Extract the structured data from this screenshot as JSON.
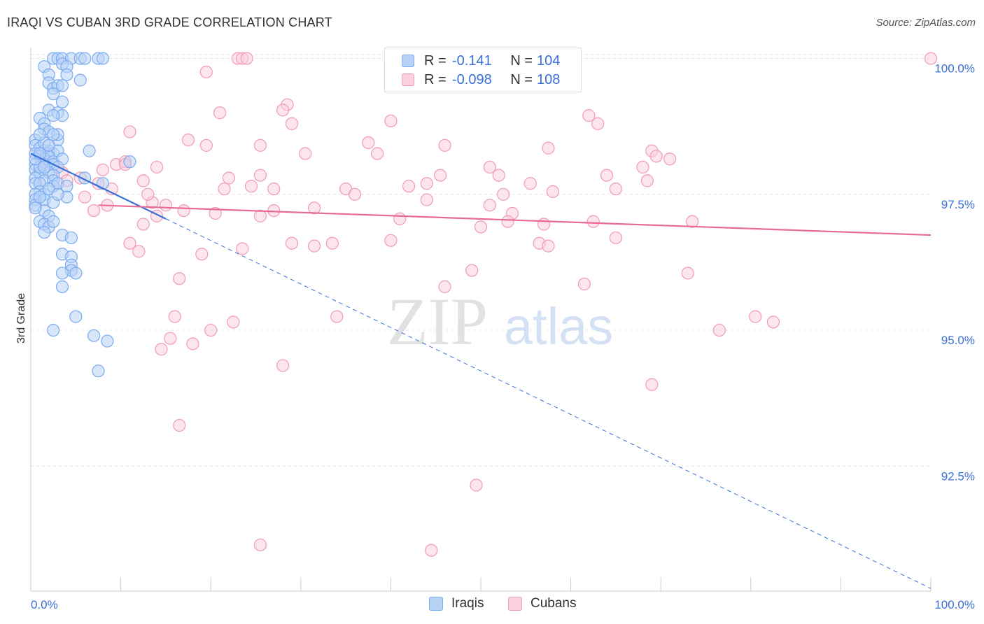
{
  "title": "IRAQI VS CUBAN 3RD GRADE CORRELATION CHART",
  "source": "Source: ZipAtlas.com",
  "watermark": {
    "zip": "ZIP",
    "atlas": "atlas"
  },
  "legend_top": {
    "rows": [
      {
        "r_label": "R =",
        "r_value": "-0.141",
        "n_label": "N =",
        "n_value": "104",
        "color": "#7aaaf0",
        "fill": "#b8d2f6"
      },
      {
        "r_label": "R =",
        "r_value": "-0.098",
        "n_label": "N =",
        "n_value": "108",
        "color": "#f09ab5",
        "fill": "#fbd0dd"
      }
    ]
  },
  "legend_bottom": [
    {
      "label": "Iraqis",
      "color": "#7aaaf0",
      "fill": "#b8d2f6"
    },
    {
      "label": "Cubans",
      "color": "#f09ab5",
      "fill": "#fbd0dd"
    }
  ],
  "chart_data": {
    "type": "scatter",
    "title": "IRAQI VS CUBAN 3RD GRADE CORRELATION CHART",
    "xlabel": "",
    "ylabel": "3rd Grade",
    "xlim": [
      0,
      100
    ],
    "ylim": [
      90.2,
      100.2
    ],
    "x_tick_labels": [
      "0.0%",
      "100.0%"
    ],
    "y_ticks": [
      92.5,
      95.0,
      97.5,
      100.0
    ],
    "y_tick_labels": [
      "92.5%",
      "95.0%",
      "97.5%",
      "100.0%"
    ],
    "colors": {
      "iraqis": "#3a6fd8",
      "cubans": "#e86a96"
    },
    "series": [
      {
        "name": "Iraqis",
        "trend": {
          "x0": 0,
          "y0": 98.25,
          "x1": 15,
          "y1": 97.05,
          "dash_to_x": 100,
          "dash_to_y": 90.25
        },
        "points": [
          [
            2.5,
            100
          ],
          [
            3.0,
            100
          ],
          [
            3.5,
            100
          ],
          [
            4.5,
            100
          ],
          [
            5.5,
            100
          ],
          [
            6.0,
            100
          ],
          [
            7.5,
            100
          ],
          [
            8.0,
            100
          ],
          [
            3.5,
            99.9
          ],
          [
            1.5,
            99.85
          ],
          [
            4.0,
            99.85
          ],
          [
            2.0,
            99.7
          ],
          [
            4.0,
            99.7
          ],
          [
            2.0,
            99.55
          ],
          [
            5.5,
            99.6
          ],
          [
            2.5,
            99.45
          ],
          [
            3.0,
            99.5
          ],
          [
            3.5,
            99.5
          ],
          [
            2.5,
            99.35
          ],
          [
            3.5,
            99.2
          ],
          [
            2.0,
            99.05
          ],
          [
            3.0,
            99.0
          ],
          [
            3.5,
            98.95
          ],
          [
            2.5,
            98.95
          ],
          [
            1.0,
            98.9
          ],
          [
            1.5,
            98.8
          ],
          [
            1.5,
            98.7
          ],
          [
            2.0,
            98.65
          ],
          [
            3.0,
            98.5
          ],
          [
            0.5,
            98.5
          ],
          [
            0.5,
            98.4
          ],
          [
            1.0,
            98.35
          ],
          [
            1.5,
            98.3
          ],
          [
            2.0,
            98.3
          ],
          [
            2.5,
            98.25
          ],
          [
            3.0,
            98.3
          ],
          [
            6.5,
            98.3
          ],
          [
            0.5,
            98.25
          ],
          [
            1.0,
            98.2
          ],
          [
            1.5,
            98.15
          ],
          [
            2.0,
            98.2
          ],
          [
            2.5,
            98.1
          ],
          [
            3.5,
            98.15
          ],
          [
            0.5,
            98.05
          ],
          [
            1.5,
            98.05
          ],
          [
            2.5,
            98.05
          ],
          [
            3.0,
            98.0
          ],
          [
            11.0,
            98.1
          ],
          [
            0.5,
            97.95
          ],
          [
            1.0,
            97.9
          ],
          [
            2.0,
            97.9
          ],
          [
            2.5,
            97.85
          ],
          [
            0.5,
            97.8
          ],
          [
            1.5,
            97.75
          ],
          [
            2.5,
            97.75
          ],
          [
            6.0,
            97.8
          ],
          [
            0.5,
            97.7
          ],
          [
            1.0,
            97.7
          ],
          [
            2.5,
            97.65
          ],
          [
            3.0,
            97.7
          ],
          [
            4.0,
            97.65
          ],
          [
            8.0,
            97.7
          ],
          [
            1.0,
            97.55
          ],
          [
            0.5,
            97.5
          ],
          [
            1.5,
            97.5
          ],
          [
            0.5,
            97.4
          ],
          [
            1.5,
            97.4
          ],
          [
            2.5,
            97.35
          ],
          [
            0.5,
            97.3
          ],
          [
            1.5,
            97.2
          ],
          [
            2.0,
            97.1
          ],
          [
            1.0,
            97.0
          ],
          [
            1.5,
            96.95
          ],
          [
            2.0,
            96.9
          ],
          [
            1.5,
            96.8
          ],
          [
            3.5,
            96.75
          ],
          [
            4.5,
            96.7
          ],
          [
            3.5,
            96.4
          ],
          [
            4.5,
            96.35
          ],
          [
            4.5,
            96.2
          ],
          [
            4.5,
            96.1
          ],
          [
            3.5,
            96.05
          ],
          [
            5.0,
            96.05
          ],
          [
            3.5,
            95.8
          ],
          [
            5.0,
            95.25
          ],
          [
            2.5,
            95.0
          ],
          [
            7.0,
            94.9
          ],
          [
            8.5,
            94.8
          ],
          [
            7.5,
            94.25
          ],
          [
            1.0,
            98.0
          ],
          [
            2.0,
            97.6
          ],
          [
            1.5,
            98.45
          ],
          [
            3.0,
            98.6
          ],
          [
            0.5,
            97.25
          ],
          [
            1.0,
            98.6
          ],
          [
            2.5,
            97.0
          ],
          [
            4.0,
            97.45
          ],
          [
            1.5,
            98.0
          ],
          [
            3.0,
            97.5
          ],
          [
            2.0,
            98.4
          ],
          [
            0.5,
            98.15
          ],
          [
            1.0,
            97.45
          ],
          [
            2.5,
            98.6
          ],
          [
            1.0,
            98.25
          ]
        ]
      },
      {
        "name": "Cubans",
        "trend": {
          "x0": 7.5,
          "y0": 97.3,
          "x1": 100,
          "y1": 96.75
        },
        "points": [
          [
            23.0,
            100
          ],
          [
            23.5,
            100
          ],
          [
            24.0,
            100
          ],
          [
            100,
            100
          ],
          [
            19.5,
            99.75
          ],
          [
            28.5,
            99.15
          ],
          [
            28.0,
            99.05
          ],
          [
            21.0,
            99.0
          ],
          [
            29.0,
            98.8
          ],
          [
            40.0,
            98.85
          ],
          [
            62.0,
            98.95
          ],
          [
            63.0,
            98.8
          ],
          [
            11.0,
            98.65
          ],
          [
            17.5,
            98.5
          ],
          [
            19.5,
            98.4
          ],
          [
            25.5,
            98.4
          ],
          [
            37.5,
            98.45
          ],
          [
            46.0,
            98.4
          ],
          [
            57.5,
            98.35
          ],
          [
            69.0,
            98.3
          ],
          [
            30.5,
            98.25
          ],
          [
            38.5,
            98.25
          ],
          [
            69.5,
            98.2
          ],
          [
            9.5,
            98.05
          ],
          [
            10.5,
            98.1
          ],
          [
            14.0,
            98.0
          ],
          [
            8.0,
            97.95
          ],
          [
            51.0,
            98.0
          ],
          [
            68.0,
            98.0
          ],
          [
            3.5,
            97.9
          ],
          [
            25.5,
            97.85
          ],
          [
            45.5,
            97.85
          ],
          [
            52.0,
            97.85
          ],
          [
            64.0,
            97.85
          ],
          [
            68.5,
            97.75
          ],
          [
            7.5,
            97.7
          ],
          [
            4.0,
            97.75
          ],
          [
            12.5,
            97.75
          ],
          [
            22.0,
            97.8
          ],
          [
            42.0,
            97.65
          ],
          [
            44.0,
            97.7
          ],
          [
            55.5,
            97.7
          ],
          [
            9.0,
            97.6
          ],
          [
            21.5,
            97.6
          ],
          [
            24.5,
            97.65
          ],
          [
            27.0,
            97.6
          ],
          [
            35.0,
            97.6
          ],
          [
            65.0,
            97.6
          ],
          [
            52.5,
            97.5
          ],
          [
            58.0,
            97.55
          ],
          [
            6.0,
            97.45
          ],
          [
            8.5,
            97.3
          ],
          [
            13.5,
            97.35
          ],
          [
            15.0,
            97.3
          ],
          [
            7.0,
            97.2
          ],
          [
            27.0,
            97.2
          ],
          [
            31.5,
            97.25
          ],
          [
            25.5,
            97.1
          ],
          [
            41.0,
            97.05
          ],
          [
            14.0,
            97.1
          ],
          [
            53.5,
            97.15
          ],
          [
            53.0,
            97.0
          ],
          [
            62.5,
            97.0
          ],
          [
            73.5,
            97.0
          ],
          [
            51.0,
            97.3
          ],
          [
            44.0,
            97.4
          ],
          [
            57.0,
            96.95
          ],
          [
            12.5,
            96.95
          ],
          [
            50.0,
            96.9
          ],
          [
            65.0,
            96.7
          ],
          [
            11.0,
            96.6
          ],
          [
            12.0,
            96.45
          ],
          [
            23.5,
            96.5
          ],
          [
            29.0,
            96.6
          ],
          [
            31.5,
            96.55
          ],
          [
            33.5,
            96.6
          ],
          [
            40.0,
            96.65
          ],
          [
            56.5,
            96.6
          ],
          [
            57.5,
            96.55
          ],
          [
            19.0,
            96.4
          ],
          [
            49.0,
            96.1
          ],
          [
            16.5,
            95.95
          ],
          [
            46.0,
            95.8
          ],
          [
            61.5,
            95.85
          ],
          [
            73.0,
            96.05
          ],
          [
            16.0,
            95.25
          ],
          [
            22.5,
            95.15
          ],
          [
            20.0,
            95.0
          ],
          [
            34.0,
            95.25
          ],
          [
            76.5,
            95.0
          ],
          [
            80.5,
            95.25
          ],
          [
            82.5,
            95.15
          ],
          [
            15.5,
            94.85
          ],
          [
            14.5,
            94.65
          ],
          [
            18.0,
            94.75
          ],
          [
            28.0,
            94.35
          ],
          [
            69.0,
            94.0
          ],
          [
            16.5,
            93.25
          ],
          [
            49.5,
            92.15
          ],
          [
            25.5,
            91.05
          ],
          [
            44.5,
            90.95
          ],
          [
            10.5,
            98.05
          ],
          [
            71.0,
            98.15
          ],
          [
            17.0,
            97.2
          ],
          [
            36.0,
            97.5
          ],
          [
            5.5,
            97.8
          ],
          [
            20.5,
            97.15
          ],
          [
            13.0,
            97.5
          ]
        ]
      }
    ]
  }
}
